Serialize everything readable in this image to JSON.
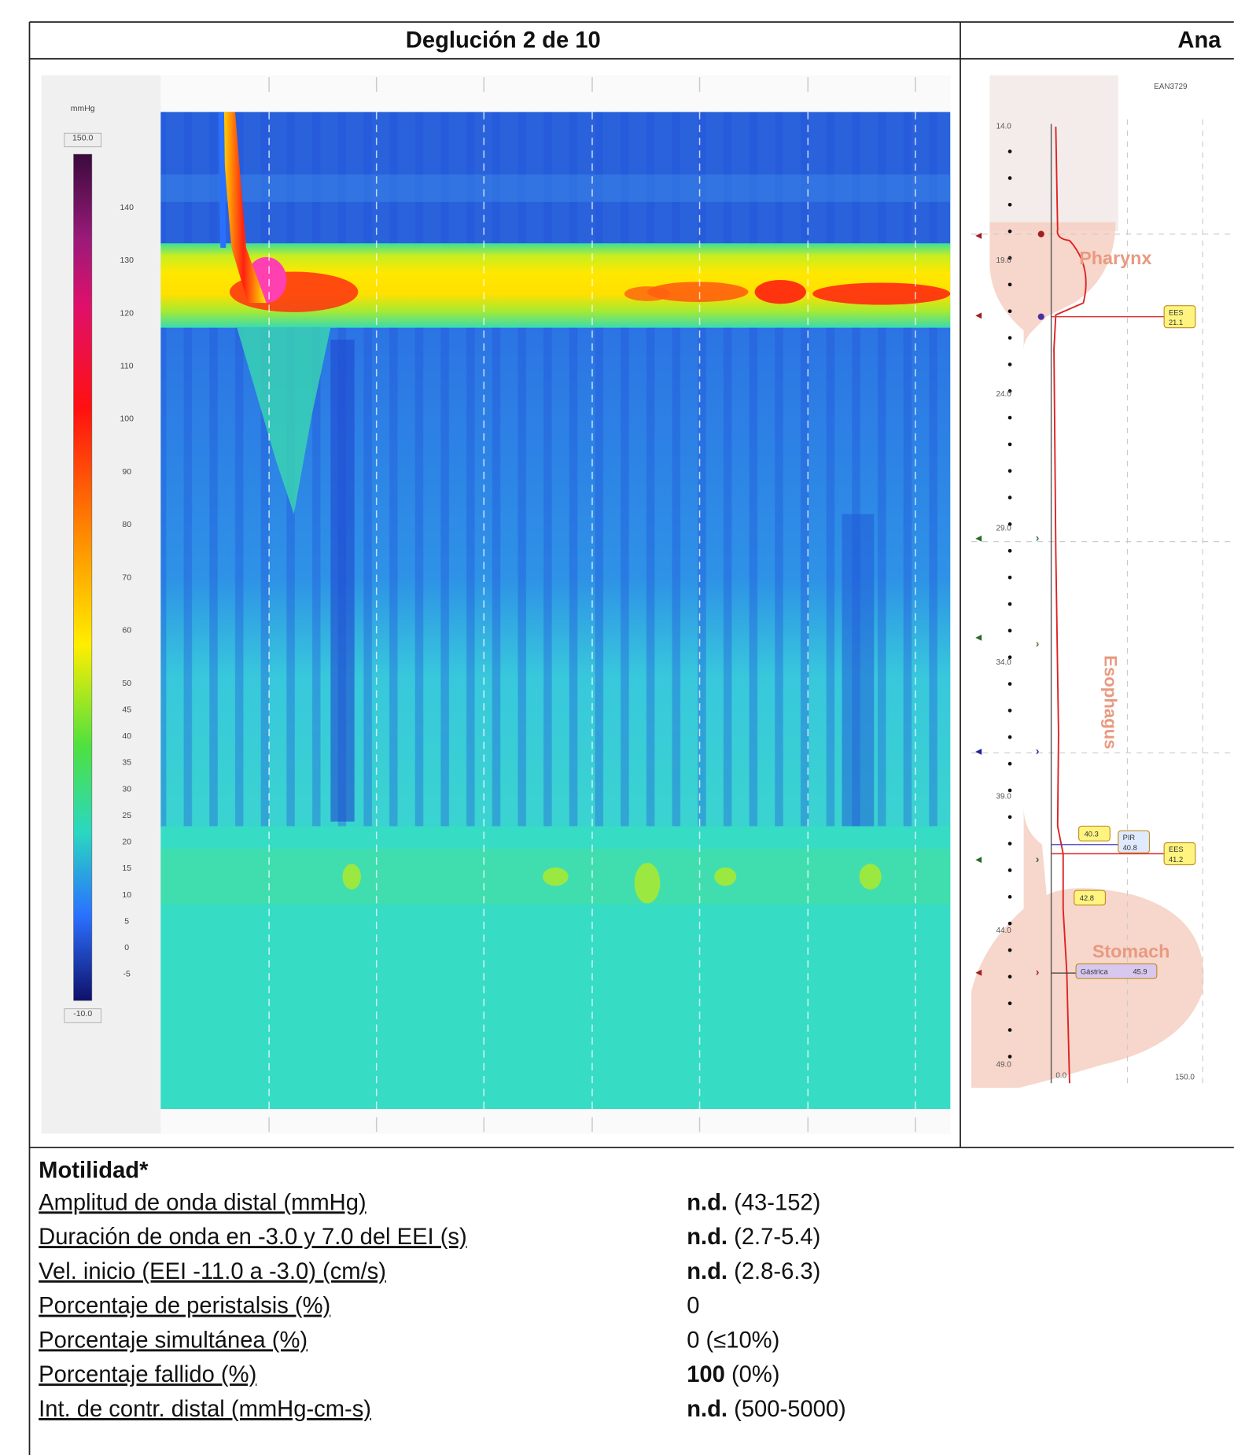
{
  "header": {
    "title": "Deglución 2 de 10",
    "right_title": "Ana"
  },
  "colorbar": {
    "unit": "mmHg",
    "max_label": "150.0",
    "min_label": "-10.0",
    "ticks": [
      "140",
      "130",
      "120",
      "110",
      "100",
      "90",
      "80",
      "70",
      "60",
      "50",
      "45",
      "40",
      "35",
      "30",
      "25",
      "20",
      "15",
      "10",
      "5",
      "0",
      "-5"
    ]
  },
  "anatomy": {
    "id_label": "EAN3729",
    "depths": [
      "14.0",
      "19.0",
      "24.0",
      "29.0",
      "34.0",
      "39.0",
      "44.0",
      "49.0"
    ],
    "regions": [
      "Pharynx",
      "Esophagus",
      "Stomach"
    ],
    "markers": [
      {
        "label": "EES",
        "value": "21.1"
      },
      {
        "value": "40.3"
      },
      {
        "label": "PIR",
        "value": "40.8"
      },
      {
        "label": "EES",
        "value": "41.2"
      },
      {
        "value": "42.8"
      },
      {
        "label": "Gástrica",
        "value": "45.9"
      }
    ],
    "axis_min": "0.0",
    "axis_max": "150.0"
  },
  "motility": {
    "title": "Motilidad*",
    "rows": [
      {
        "label": "Amplitud de onda distal (mmHg)",
        "value": "n.d.",
        "bold": true,
        "range": "(43-152)"
      },
      {
        "label": "Duración de onda en -3.0 y 7.0 del EEI (s)",
        "value": "n.d.",
        "bold": true,
        "range": "(2.7-5.4)"
      },
      {
        "label": "Vel. inicio (EEI -11.0 a -3.0) (cm/s)",
        "value": "n.d.",
        "bold": true,
        "range": "(2.8-6.3)"
      },
      {
        "label": "Porcentaje de peristalsis (%)",
        "value": "0",
        "bold": false
      },
      {
        "label": "Porcentaje simultánea (%)",
        "value": "0",
        "bold": false,
        "range": "(≤10%)"
      },
      {
        "label": "Porcentaje fallido (%)",
        "value": "100",
        "bold": true,
        "range": "(0%)"
      },
      {
        "label": "Int. de contr. distal (mmHg-cm-s)",
        "value": "n.d.",
        "bold": true,
        "range": "(500-5000)"
      }
    ]
  }
}
